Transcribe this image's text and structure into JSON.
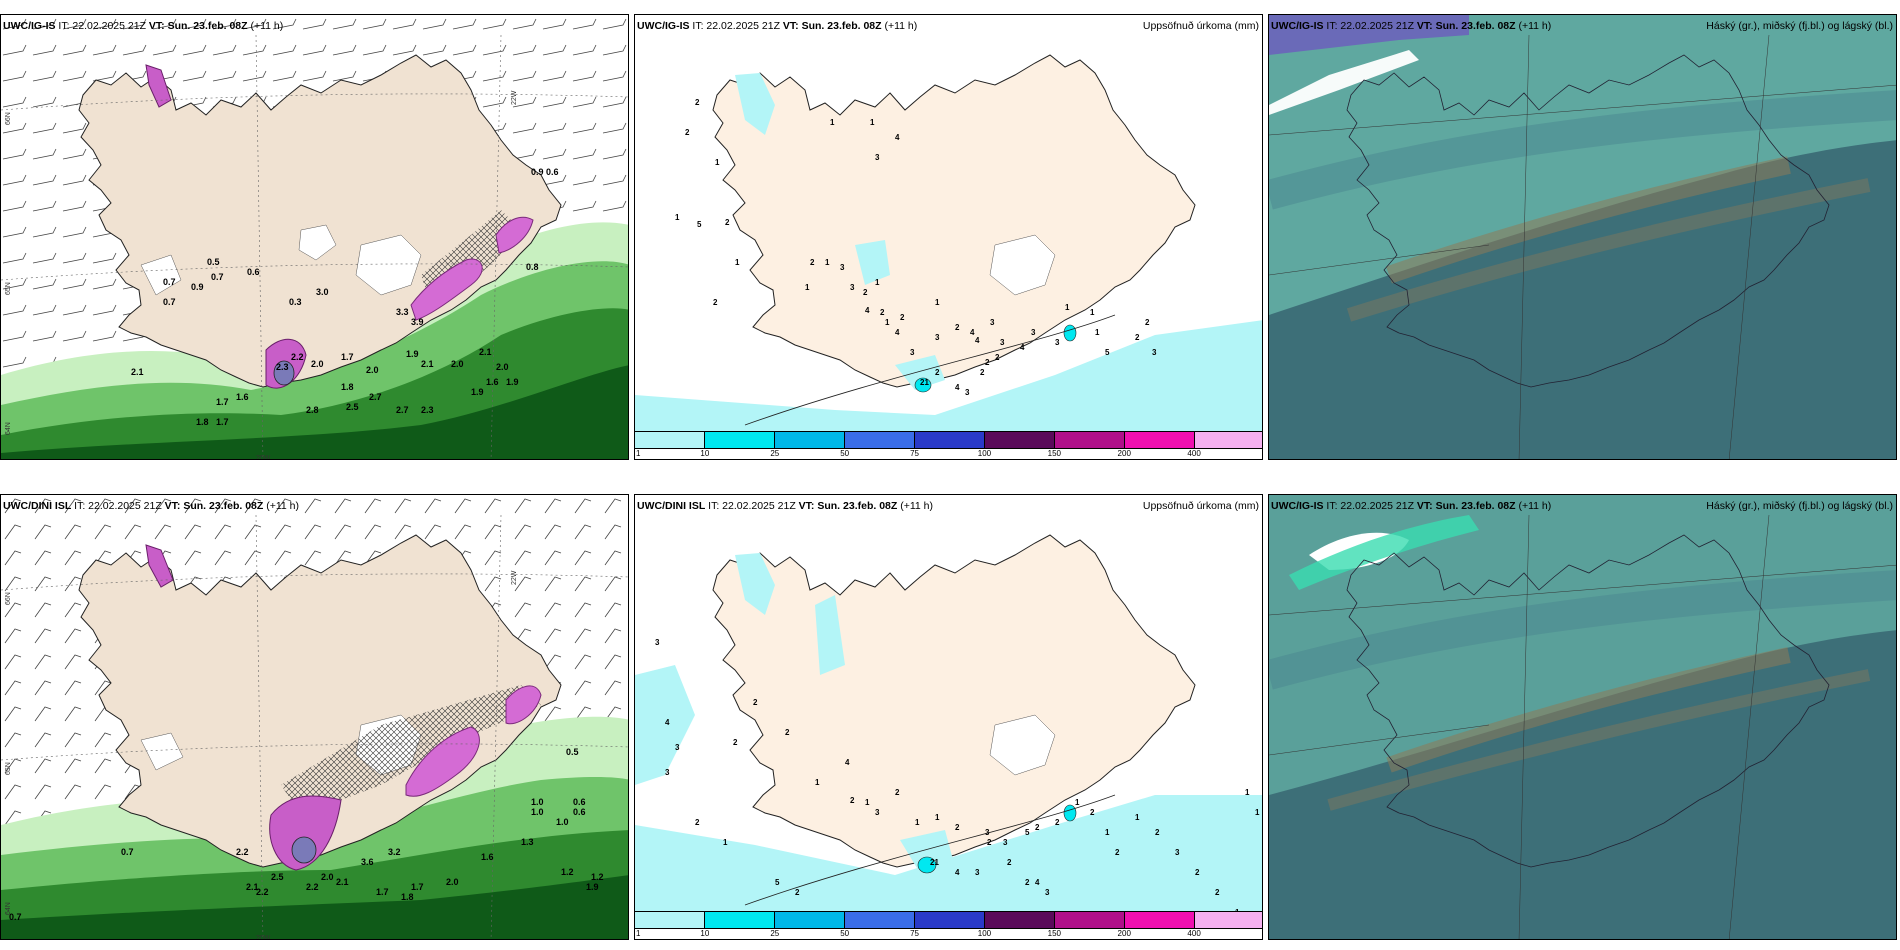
{
  "rows": [
    {
      "model": "UWC/IG-IS",
      "it": "IT: 22.02.2025 21Z",
      "vt_label": "VT:",
      "vt": "Sun. 23.feb. 08Z",
      "lead": "(+11 h)",
      "wind_panel": {
        "labels": [
          "0.5",
          "0.7",
          "0.7",
          "0.9",
          "0.6",
          "0.7",
          "0.3",
          "3.0",
          "0.9",
          "0.6",
          "3.3",
          "3.9",
          "0.8",
          "2.1",
          "2.3",
          "2.2",
          "2.0",
          "1.7",
          "2.0",
          "1.9",
          "2.1",
          "2.0",
          "1.9",
          "1.8",
          "2.7",
          "2.8",
          "2.5",
          "2.7",
          "2.3",
          "1.8",
          "1.7",
          "1.6",
          "1.7",
          "2.1",
          "2.0",
          "1.6",
          "1.9"
        ],
        "axis_ticks": [
          "66N",
          "65N",
          "64N",
          "22W",
          "20W"
        ]
      },
      "precip_panel": {
        "title": "Uppsöfnuð úrkoma (mm)",
        "labels": [
          "2",
          "2",
          "1",
          "1",
          "5",
          "2",
          "1",
          "2",
          "1",
          "1",
          "4",
          "3",
          "1",
          "2",
          "1",
          "3",
          "3",
          "2",
          "1",
          "4",
          "2",
          "2",
          "1",
          "1",
          "3",
          "3",
          "4",
          "2",
          "4",
          "4",
          "3",
          "3",
          "2",
          "2",
          "2",
          "21",
          "4",
          "3",
          "2",
          "4",
          "3",
          "3",
          "1",
          "1",
          "1",
          "5",
          "2",
          "3",
          "2"
        ],
        "colorbar": {
          "colors": [
            "#b3f5f7",
            "#00e8f0",
            "#00b8e8",
            "#3a6de8",
            "#2a3ac8",
            "#5a0a5a",
            "#b0108a",
            "#f010b0",
            "#f5b0f0"
          ],
          "ticks": [
            "1",
            "10",
            "25",
            "50",
            "75",
            "100",
            "150",
            "200",
            "400"
          ]
        }
      },
      "cloud_panel": {
        "title": "Háský (gr.), miðský (fj.bl.) og lágský (bl.)"
      }
    },
    {
      "model": "UWC/DINI ISL",
      "it": "IT: 22.02.2025 21Z",
      "vt_label": "VT:",
      "vt": "Sun. 23.feb. 08Z",
      "lead": "(+11 h)",
      "cloud_model": "UWC/IG-IS",
      "wind_panel": {
        "labels": [
          "0.5",
          "1.0",
          "1.0",
          "0.6",
          "0.6",
          "1.0",
          "0.7",
          "0.7",
          "2.1",
          "2.5",
          "2.2",
          "2.0",
          "2.1",
          "3.6",
          "3.2",
          "1.6",
          "1.3",
          "2.2",
          "2.2",
          "1.7",
          "1.8",
          "1.7",
          "2.0",
          "1.2",
          "1.2",
          "1.9"
        ],
        "axis_ticks": [
          "66N",
          "65N",
          "64N",
          "22W",
          "20W"
        ]
      },
      "precip_panel": {
        "title": "Uppsöfnuð úrkoma (mm)",
        "labels": [
          "3",
          "4",
          "3",
          "3",
          "2",
          "1",
          "2",
          "2",
          "2",
          "1",
          "4",
          "2",
          "1",
          "3",
          "2",
          "1",
          "1",
          "2",
          "3",
          "2",
          "2",
          "4",
          "3",
          "21",
          "4",
          "3",
          "2",
          "3",
          "5",
          "2",
          "2",
          "1",
          "2",
          "1",
          "2",
          "1",
          "2",
          "3",
          "2",
          "2",
          "1",
          "1",
          "1",
          "5",
          "2"
        ],
        "colorbar": {
          "colors": [
            "#b3f5f7",
            "#00e8f0",
            "#00b8e8",
            "#3a6de8",
            "#2a3ac8",
            "#5a0a5a",
            "#b0108a",
            "#f010b0",
            "#f5b0f0"
          ],
          "ticks": [
            "1",
            "10",
            "25",
            "50",
            "75",
            "100",
            "150",
            "200",
            "400"
          ]
        }
      },
      "cloud_panel": {
        "title": "Háský (gr.), miðský (fj.bl.) og lágský (bl.)"
      }
    }
  ]
}
